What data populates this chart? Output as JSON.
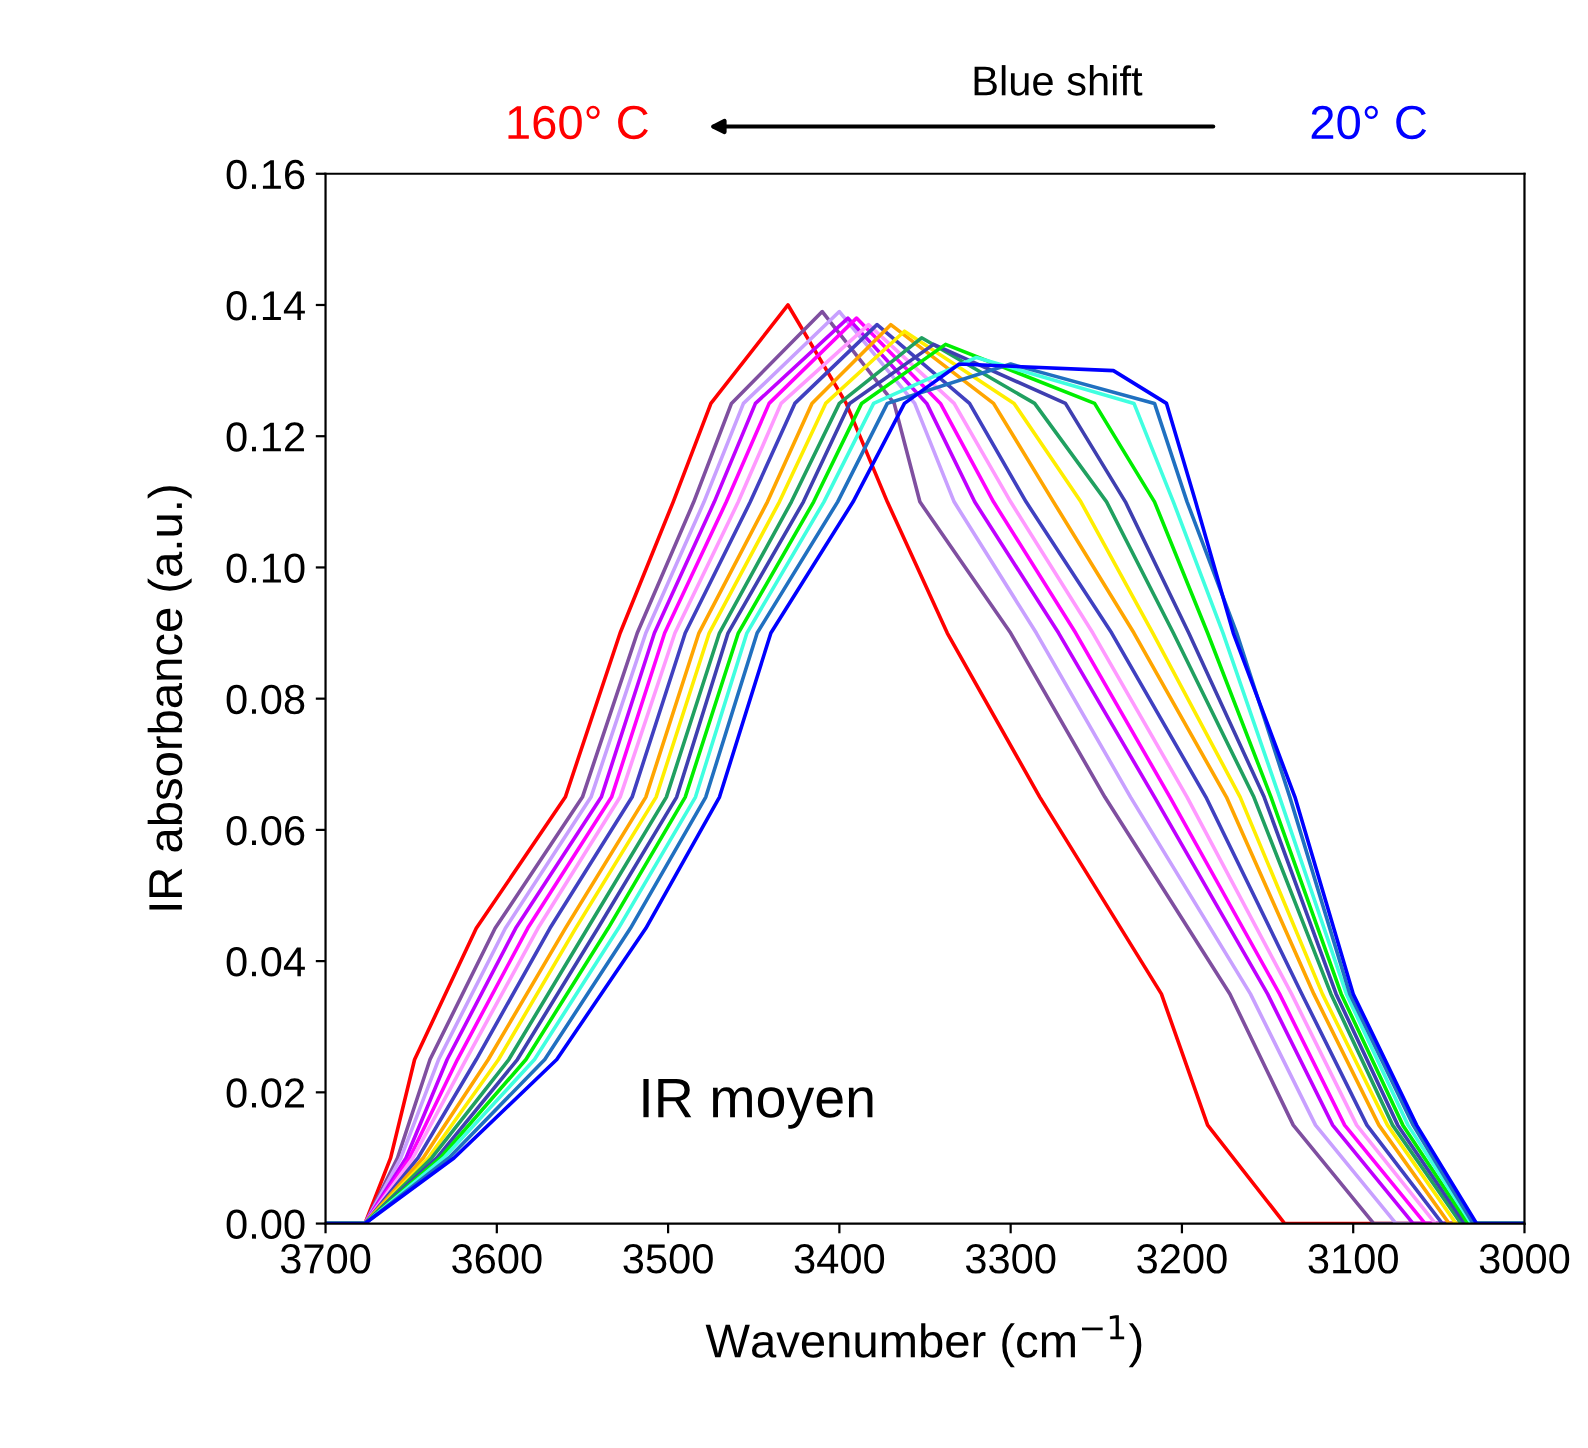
{
  "chart_data": {
    "type": "line",
    "xlabel": "Wavenumber (cm$^{−1}$)",
    "ylabel": "IR absorbance (a.u.)",
    "annotations": [
      "160° C",
      "Blue shift",
      "20° C",
      "IR moyen"
    ],
    "xlim": [
      3700,
      3000
    ],
    "xticks": [
      3700,
      3600,
      3500,
      3400,
      3300,
      3200,
      3100,
      3000
    ],
    "ylim": [
      0,
      0.16
    ],
    "yticks": [
      {
        "value": 0,
        "label": "0.00"
      },
      {
        "value": 0.02,
        "label": "0.02"
      },
      {
        "value": 0.04,
        "label": "0.04"
      },
      {
        "value": 0.06,
        "label": "0.06"
      },
      {
        "value": 0.08,
        "label": "0.08"
      },
      {
        "value": 0.1,
        "label": "0.10"
      },
      {
        "value": 0.12,
        "label": "0.12"
      },
      {
        "value": 0.14,
        "label": "0.14"
      },
      {
        "value": 0.16,
        "label": "0.16"
      }
    ],
    "grid": false,
    "legend": false,
    "marker": "none",
    "line_style": "solid",
    "series": [
      {
        "color": "#ff0000",
        "x": [
          3700,
          3677,
          3662,
          3648,
          3612,
          3560,
          3528,
          3497,
          3475,
          3430,
          3396,
          3372,
          3337,
          3283,
          3212,
          3185,
          3140,
          3000
        ],
        "values": [
          0,
          0,
          0.01,
          0.025,
          0.045,
          0.065,
          0.09,
          0.11,
          0.125,
          0.14,
          0.125,
          0.11,
          0.09,
          0.065,
          0.035,
          0.015,
          0,
          0
        ]
      },
      {
        "color": "#7f4fa0",
        "x": [
          3700,
          3677,
          3658,
          3639,
          3601,
          3550,
          3518,
          3485,
          3463,
          3410,
          3368,
          3353,
          3300,
          3245,
          3172,
          3135,
          3088,
          3000
        ],
        "values": [
          0,
          0,
          0.01,
          0.025,
          0.045,
          0.065,
          0.09,
          0.11,
          0.125,
          0.139,
          0.125,
          0.11,
          0.09,
          0.065,
          0.035,
          0.015,
          0,
          0
        ]
      },
      {
        "color": "#c8a0ff",
        "x": [
          3700,
          3677,
          3656,
          3634,
          3595,
          3545,
          3513,
          3479,
          3456,
          3400,
          3356,
          3333,
          3285,
          3230,
          3160,
          3122,
          3075,
          3000
        ],
        "values": [
          0,
          0,
          0.01,
          0.025,
          0.045,
          0.065,
          0.09,
          0.11,
          0.125,
          0.139,
          0.125,
          0.11,
          0.09,
          0.065,
          0.035,
          0.015,
          0,
          0
        ]
      },
      {
        "color": "#c000ff",
        "x": [
          3700,
          3677,
          3653,
          3629,
          3589,
          3539,
          3508,
          3473,
          3449,
          3395,
          3349,
          3321,
          3272,
          3216,
          3150,
          3112,
          3065,
          3000
        ],
        "values": [
          0,
          0,
          0.01,
          0.025,
          0.045,
          0.065,
          0.09,
          0.11,
          0.125,
          0.138,
          0.125,
          0.11,
          0.09,
          0.065,
          0.035,
          0.015,
          0,
          0
        ]
      },
      {
        "color": "#ff00ff",
        "x": [
          3700,
          3677,
          3651,
          3623,
          3582,
          3533,
          3502,
          3466,
          3441,
          3390,
          3341,
          3310,
          3262,
          3207,
          3143,
          3105,
          3058,
          3000
        ],
        "values": [
          0,
          0,
          0.01,
          0.025,
          0.045,
          0.065,
          0.09,
          0.11,
          0.125,
          0.138,
          0.125,
          0.11,
          0.09,
          0.065,
          0.035,
          0.015,
          0,
          0
        ]
      },
      {
        "color": "#ff99ff",
        "x": [
          3700,
          3677,
          3649,
          3618,
          3576,
          3528,
          3496,
          3459,
          3434,
          3383,
          3333,
          3300,
          3252,
          3197,
          3136,
          3098,
          3052,
          3000
        ],
        "values": [
          0,
          0,
          0.01,
          0.025,
          0.045,
          0.065,
          0.09,
          0.11,
          0.125,
          0.137,
          0.125,
          0.11,
          0.09,
          0.065,
          0.035,
          0.015,
          0,
          0
        ]
      },
      {
        "color": "#4040c0",
        "x": [
          3700,
          3677,
          3646,
          3612,
          3569,
          3521,
          3490,
          3452,
          3426,
          3378,
          3324,
          3291,
          3241,
          3186,
          3130,
          3092,
          3048,
          3000
        ],
        "values": [
          0,
          0,
          0.01,
          0.025,
          0.045,
          0.065,
          0.09,
          0.11,
          0.125,
          0.137,
          0.125,
          0.11,
          0.09,
          0.065,
          0.035,
          0.015,
          0,
          0
        ]
      },
      {
        "color": "#ffa500",
        "x": [
          3700,
          3677,
          3643,
          3605,
          3560,
          3513,
          3482,
          3442,
          3416,
          3370,
          3310,
          3275,
          3228,
          3174,
          3123,
          3085,
          3044,
          3000
        ],
        "values": [
          0,
          0,
          0.01,
          0.025,
          0.045,
          0.065,
          0.09,
          0.11,
          0.125,
          0.137,
          0.125,
          0.11,
          0.09,
          0.065,
          0.035,
          0.015,
          0,
          0
        ]
      },
      {
        "color": "#ffee00",
        "x": [
          3700,
          3677,
          3640,
          3599,
          3554,
          3507,
          3476,
          3435,
          3408,
          3362,
          3298,
          3259,
          3217,
          3166,
          3118,
          3080,
          3040,
          3000
        ],
        "values": [
          0,
          0,
          0.01,
          0.025,
          0.045,
          0.065,
          0.09,
          0.11,
          0.125,
          0.136,
          0.125,
          0.11,
          0.09,
          0.065,
          0.035,
          0.015,
          0,
          0
        ]
      },
      {
        "color": "#20a060",
        "x": [
          3700,
          3677,
          3638,
          3593,
          3547,
          3501,
          3470,
          3428,
          3400,
          3352,
          3286,
          3244,
          3205,
          3158,
          3113,
          3077,
          3037,
          3000
        ],
        "values": [
          0,
          0,
          0.01,
          0.025,
          0.045,
          0.065,
          0.09,
          0.11,
          0.125,
          0.135,
          0.125,
          0.11,
          0.09,
          0.065,
          0.035,
          0.015,
          0,
          0
        ]
      },
      {
        "color": "#3f3fb0",
        "x": [
          3700,
          3677,
          3635,
          3588,
          3541,
          3495,
          3465,
          3421,
          3394,
          3345,
          3268,
          3233,
          3196,
          3152,
          3110,
          3074,
          3035,
          3000
        ],
        "values": [
          0,
          0,
          0.01,
          0.025,
          0.045,
          0.065,
          0.09,
          0.11,
          0.125,
          0.134,
          0.125,
          0.11,
          0.09,
          0.065,
          0.035,
          0.015,
          0,
          0
        ]
      },
      {
        "color": "#00ee00",
        "x": [
          3700,
          3677,
          3633,
          3583,
          3535,
          3490,
          3459,
          3415,
          3387,
          3338,
          3251,
          3216,
          3185,
          3148,
          3107,
          3071,
          3033,
          3000
        ],
        "values": [
          0,
          0,
          0.01,
          0.025,
          0.045,
          0.065,
          0.09,
          0.11,
          0.125,
          0.134,
          0.125,
          0.11,
          0.09,
          0.065,
          0.035,
          0.015,
          0,
          0
        ]
      },
      {
        "color": "#40ffe0",
        "x": [
          3700,
          3677,
          3631,
          3578,
          3529,
          3484,
          3454,
          3409,
          3380,
          3320,
          3228,
          3205,
          3176,
          3143,
          3104,
          3068,
          3031,
          3000
        ],
        "values": [
          0,
          0,
          0.01,
          0.025,
          0.045,
          0.065,
          0.09,
          0.11,
          0.125,
          0.132,
          0.125,
          0.11,
          0.09,
          0.065,
          0.035,
          0.015,
          0,
          0
        ]
      },
      {
        "color": "#2070c0",
        "x": [
          3700,
          3677,
          3628,
          3572,
          3522,
          3478,
          3448,
          3401,
          3372,
          3300,
          3216,
          3197,
          3168,
          3137,
          3102,
          3065,
          3030,
          3000
        ],
        "values": [
          0,
          0,
          0.01,
          0.025,
          0.045,
          0.065,
          0.09,
          0.11,
          0.125,
          0.131,
          0.125,
          0.11,
          0.09,
          0.065,
          0.035,
          0.015,
          0,
          0
        ]
      },
      {
        "color": "#0000ff",
        "x": [
          3700,
          3677,
          3625,
          3565,
          3513,
          3470,
          3440,
          3392,
          3362,
          3330,
          3240,
          3209,
          3192,
          3170,
          3134,
          3100,
          3063,
          3028,
          3000
        ],
        "values": [
          0,
          0,
          0.01,
          0.025,
          0.045,
          0.065,
          0.09,
          0.11,
          0.125,
          0.131,
          0.13,
          0.125,
          0.11,
          0.09,
          0.065,
          0.035,
          0.015,
          0,
          0
        ]
      }
    ]
  }
}
